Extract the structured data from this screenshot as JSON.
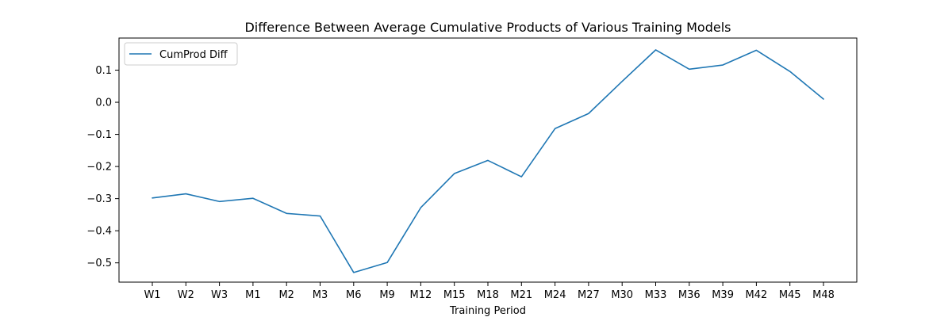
{
  "chart_data": {
    "type": "line",
    "title": "Difference Between Average Cumulative Products of Various Training Models",
    "xlabel": "Training Period",
    "ylabel": "",
    "categories": [
      "W1",
      "W2",
      "W3",
      "M1",
      "M2",
      "M3",
      "M6",
      "M9",
      "M12",
      "M15",
      "M18",
      "M21",
      "M24",
      "M27",
      "M30",
      "M33",
      "M36",
      "M39",
      "M42",
      "M45",
      "M48"
    ],
    "series": [
      {
        "name": "CumProd Diff",
        "color": "#1f77b4",
        "values": [
          -0.298,
          -0.285,
          -0.309,
          -0.299,
          -0.346,
          -0.354,
          -0.53,
          -0.499,
          -0.328,
          -0.222,
          -0.181,
          -0.232,
          -0.082,
          -0.035,
          0.065,
          0.163,
          0.103,
          0.116,
          0.162,
          0.096,
          0.01
        ]
      }
    ],
    "ylim": [
      -0.56,
      0.2
    ],
    "yticks": [
      {
        "value": 0.1,
        "label": "0.1"
      },
      {
        "value": 0.0,
        "label": "0.0"
      },
      {
        "value": -0.1,
        "label": "−0.1"
      },
      {
        "value": -0.2,
        "label": "−0.2"
      },
      {
        "value": -0.3,
        "label": "−0.3"
      },
      {
        "value": -0.4,
        "label": "−0.4"
      },
      {
        "value": -0.5,
        "label": "−0.5"
      }
    ],
    "grid": false,
    "legend": "top-left"
  }
}
